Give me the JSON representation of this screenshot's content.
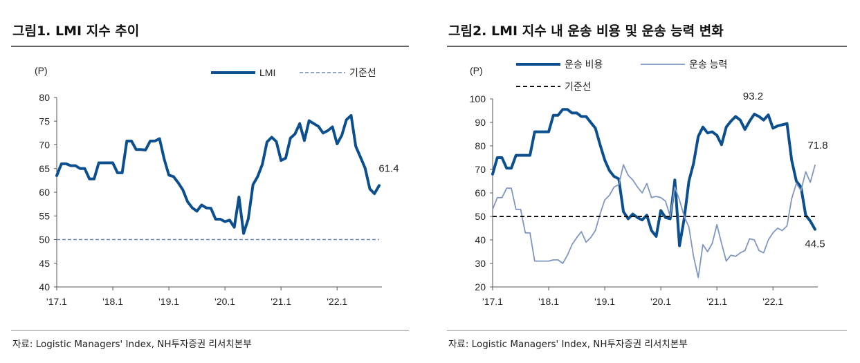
{
  "left_panel": {
    "title": "그림1. LMI 지수 추이",
    "source": "자료: Logistic Managers' Index, NH투자증권 리서치본부"
  },
  "right_panel": {
    "title": "그림2. LMI 지수 내 운송 비용 및 운송 능력 변화",
    "source": "자료: Logistic Managers' Index, NH투자증권 리서치본부"
  },
  "colors": {
    "dark_blue": "#0B4F8F",
    "light_blue": "#7E97C2",
    "dashed_blue": "#6E86BE",
    "black": "#111111"
  },
  "chart_data": [
    {
      "type": "line",
      "unit_label": "(P)",
      "ylim": [
        40,
        80
      ],
      "y_ticks": [
        40,
        45,
        50,
        55,
        60,
        65,
        70,
        75,
        80
      ],
      "x_ticks": [
        "'17.1",
        "'18.1",
        "'19.1",
        "'20.1",
        "'21.1",
        "'22.1"
      ],
      "x_tick_index": [
        0,
        12,
        24,
        36,
        48,
        60
      ],
      "series": [
        {
          "name": "LMI",
          "style": "solid-thick",
          "color": "#0B4F8F",
          "values": [
            63.5,
            66.0,
            66.0,
            65.6,
            65.6,
            65.0,
            65.0,
            62.8,
            62.8,
            66.2,
            66.2,
            66.2,
            66.2,
            64.1,
            64.1,
            70.8,
            70.8,
            69.0,
            69.0,
            68.9,
            70.8,
            70.8,
            71.3,
            67.0,
            63.6,
            63.3,
            62.0,
            60.5,
            58.0,
            56.7,
            56.0,
            57.3,
            56.7,
            56.6,
            54.3,
            54.3,
            53.8,
            54.1,
            52.6,
            59.0,
            51.3,
            54.4,
            61.6,
            63.3,
            65.9,
            70.6,
            71.6,
            70.7,
            66.7,
            67.2,
            71.4,
            72.3,
            74.5,
            70.9,
            75.1,
            74.5,
            73.9,
            72.5,
            73.0,
            73.8,
            70.2,
            72.0,
            75.3,
            76.2,
            69.7,
            67.4,
            65.1,
            60.7,
            59.7,
            61.4
          ]
        },
        {
          "name": "기준선",
          "style": "dashed",
          "color": "#6E86BE",
          "values": [
            50
          ]
        }
      ],
      "annotations": [
        {
          "text": "61.4",
          "index": 69,
          "value": 61.4
        }
      ],
      "legend_position": "top-right"
    },
    {
      "type": "line",
      "unit_label": "(P)",
      "ylim": [
        20,
        100
      ],
      "y_ticks": [
        20,
        30,
        40,
        50,
        60,
        70,
        80,
        90,
        100
      ],
      "x_ticks": [
        "'17.1",
        "'18.1",
        "'19.1",
        "'20.1",
        "'21.1",
        "'22.1"
      ],
      "x_tick_index": [
        0,
        12,
        24,
        36,
        48,
        60
      ],
      "series": [
        {
          "name": "운송 비용",
          "style": "solid-thick",
          "color": "#0B4F8F",
          "values": [
            68.0,
            75.0,
            75.0,
            70.5,
            70.5,
            76.0,
            76.0,
            76.0,
            76.0,
            86.0,
            86.0,
            86.0,
            86.0,
            93.0,
            93.0,
            95.5,
            95.5,
            94.0,
            94.0,
            92.5,
            92.5,
            90.0,
            87.5,
            80.5,
            74.0,
            69.5,
            67.0,
            66.0,
            52.0,
            49.0,
            51.0,
            49.5,
            48.5,
            50.5,
            44.0,
            41.5,
            52.5,
            49.5,
            49.0,
            65.5,
            37.5,
            49.0,
            65.0,
            72.5,
            84.0,
            88.0,
            85.5,
            86.0,
            84.5,
            80.5,
            88.0,
            90.5,
            92.5,
            91.0,
            87.0,
            90.5,
            93.5,
            92.5,
            91.0,
            93.2,
            87.5,
            88.5,
            89.0,
            89.5,
            74.0,
            65.0,
            62.5,
            50.5,
            48.0,
            44.5
          ]
        },
        {
          "name": "운송 능력",
          "style": "solid-thin",
          "color": "#7E97C2",
          "values": [
            53.0,
            58.0,
            58.0,
            62.0,
            62.0,
            53.0,
            53.0,
            43.0,
            43.0,
            31.0,
            31.0,
            31.0,
            31.0,
            31.5,
            31.5,
            30.0,
            33.5,
            38.0,
            41.0,
            43.5,
            39.0,
            41.0,
            44.0,
            51.0,
            57.0,
            59.0,
            62.5,
            63.5,
            72.0,
            67.5,
            65.5,
            62.5,
            60.0,
            64.0,
            58.0,
            58.5,
            58.0,
            56.5,
            50.0,
            62.5,
            57.0,
            50.0,
            45.5,
            33.0,
            24.0,
            38.0,
            35.0,
            38.5,
            46.5,
            38.5,
            31.0,
            33.5,
            33.0,
            34.5,
            35.5,
            40.5,
            40.0,
            35.5,
            34.5,
            40.0,
            43.0,
            45.0,
            44.0,
            46.0,
            57.5,
            64.0,
            61.0,
            69.0,
            64.5,
            71.8
          ]
        },
        {
          "name": "기준선",
          "style": "dashed",
          "color": "#111111",
          "values": [
            50
          ]
        }
      ],
      "annotations": [
        {
          "text": "93.2",
          "index": 59,
          "value": 93.2
        },
        {
          "text": "71.8",
          "index": 69,
          "value": 71.8
        },
        {
          "text": "44.5",
          "index": 69,
          "value": 44.5
        }
      ],
      "legend_position": "top-left"
    }
  ]
}
